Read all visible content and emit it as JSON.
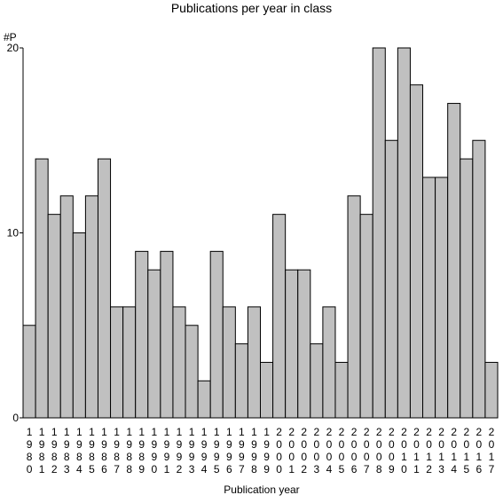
{
  "chart_data": {
    "type": "bar",
    "title": "Publications per year in class",
    "xlabel": "Publication year",
    "ylabel": "#P",
    "ylim": [
      0,
      20
    ],
    "y_ticks": [
      "0",
      "10",
      "20"
    ],
    "categories": [
      "1980",
      "1981",
      "1982",
      "1983",
      "1984",
      "1985",
      "1986",
      "1987",
      "1988",
      "1989",
      "1990",
      "1991",
      "1992",
      "1993",
      "1994",
      "1995",
      "1996",
      "1997",
      "1998",
      "1999",
      "2000",
      "2001",
      "2002",
      "2003",
      "2004",
      "2005",
      "2006",
      "2007",
      "2008",
      "2009",
      "2010",
      "2011",
      "2012",
      "2013",
      "2014",
      "2015",
      "2016",
      "2017"
    ],
    "values": [
      5,
      14,
      11,
      12,
      10,
      12,
      14,
      6,
      6,
      9,
      8,
      9,
      6,
      5,
      2,
      9,
      6,
      4,
      6,
      3,
      11,
      8,
      8,
      4,
      6,
      3,
      12,
      11,
      20,
      15,
      20,
      18,
      13,
      13,
      17,
      14,
      15,
      3
    ],
    "colors": {
      "bar_fill": "#c0c0c0",
      "bar_stroke": "#000000",
      "axis": "#000000"
    },
    "grid": false,
    "legend": "none"
  }
}
